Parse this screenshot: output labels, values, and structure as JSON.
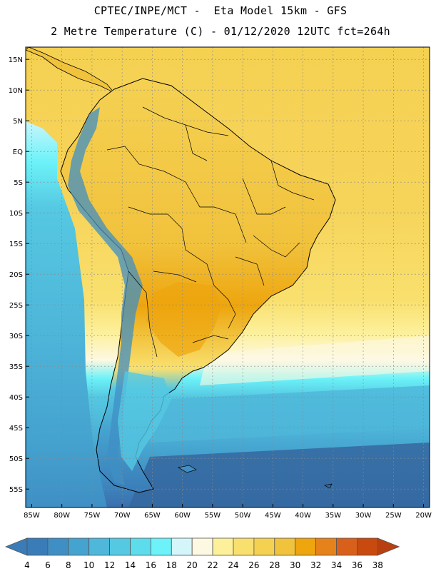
{
  "header": {
    "title_line1": "CPTEC/INPE/MCT -  Eta Model 15km - GFS",
    "title_line2": "2 Metre Temperature (C) - 01/12/2020 12UTC fct=264h"
  },
  "map": {
    "lon_range": [
      -86,
      -19
    ],
    "lat_range": [
      -58,
      17
    ],
    "lat_ticks": [
      "15N",
      "10N",
      "5N",
      "EQ",
      "5S",
      "10S",
      "15S",
      "20S",
      "25S",
      "30S",
      "35S",
      "40S",
      "45S",
      "50S",
      "55S"
    ],
    "lat_values": [
      15,
      10,
      5,
      0,
      -5,
      -10,
      -15,
      -20,
      -25,
      -30,
      -35,
      -40,
      -45,
      -50,
      -55
    ],
    "lon_ticks": [
      "85W",
      "80W",
      "75W",
      "70W",
      "65W",
      "60W",
      "55W",
      "50W",
      "45W",
      "40W",
      "35W",
      "30W",
      "25W",
      "20W"
    ],
    "lon_values": [
      -85,
      -80,
      -75,
      -70,
      -65,
      -60,
      -55,
      -50,
      -45,
      -40,
      -35,
      -30,
      -25,
      -20
    ],
    "gridlines": true
  },
  "colorbar": {
    "labels": [
      "4",
      "6",
      "8",
      "10",
      "12",
      "14",
      "16",
      "18",
      "20",
      "22",
      "24",
      "26",
      "28",
      "30",
      "32",
      "34",
      "36",
      "38"
    ],
    "colors": [
      "#3a7cb8",
      "#3a7cb8",
      "#3f8fc4",
      "#45a3cf",
      "#4fb7da",
      "#55c8e2",
      "#5ddcec",
      "#6cf2f8",
      "#d4f6fb",
      "#fdf8e2",
      "#fdf09a",
      "#f9e06e",
      "#f5d152",
      "#f1c23c",
      "#eea50e",
      "#e6821a",
      "#d8601a",
      "#c84a0e",
      "#b84010"
    ]
  }
}
